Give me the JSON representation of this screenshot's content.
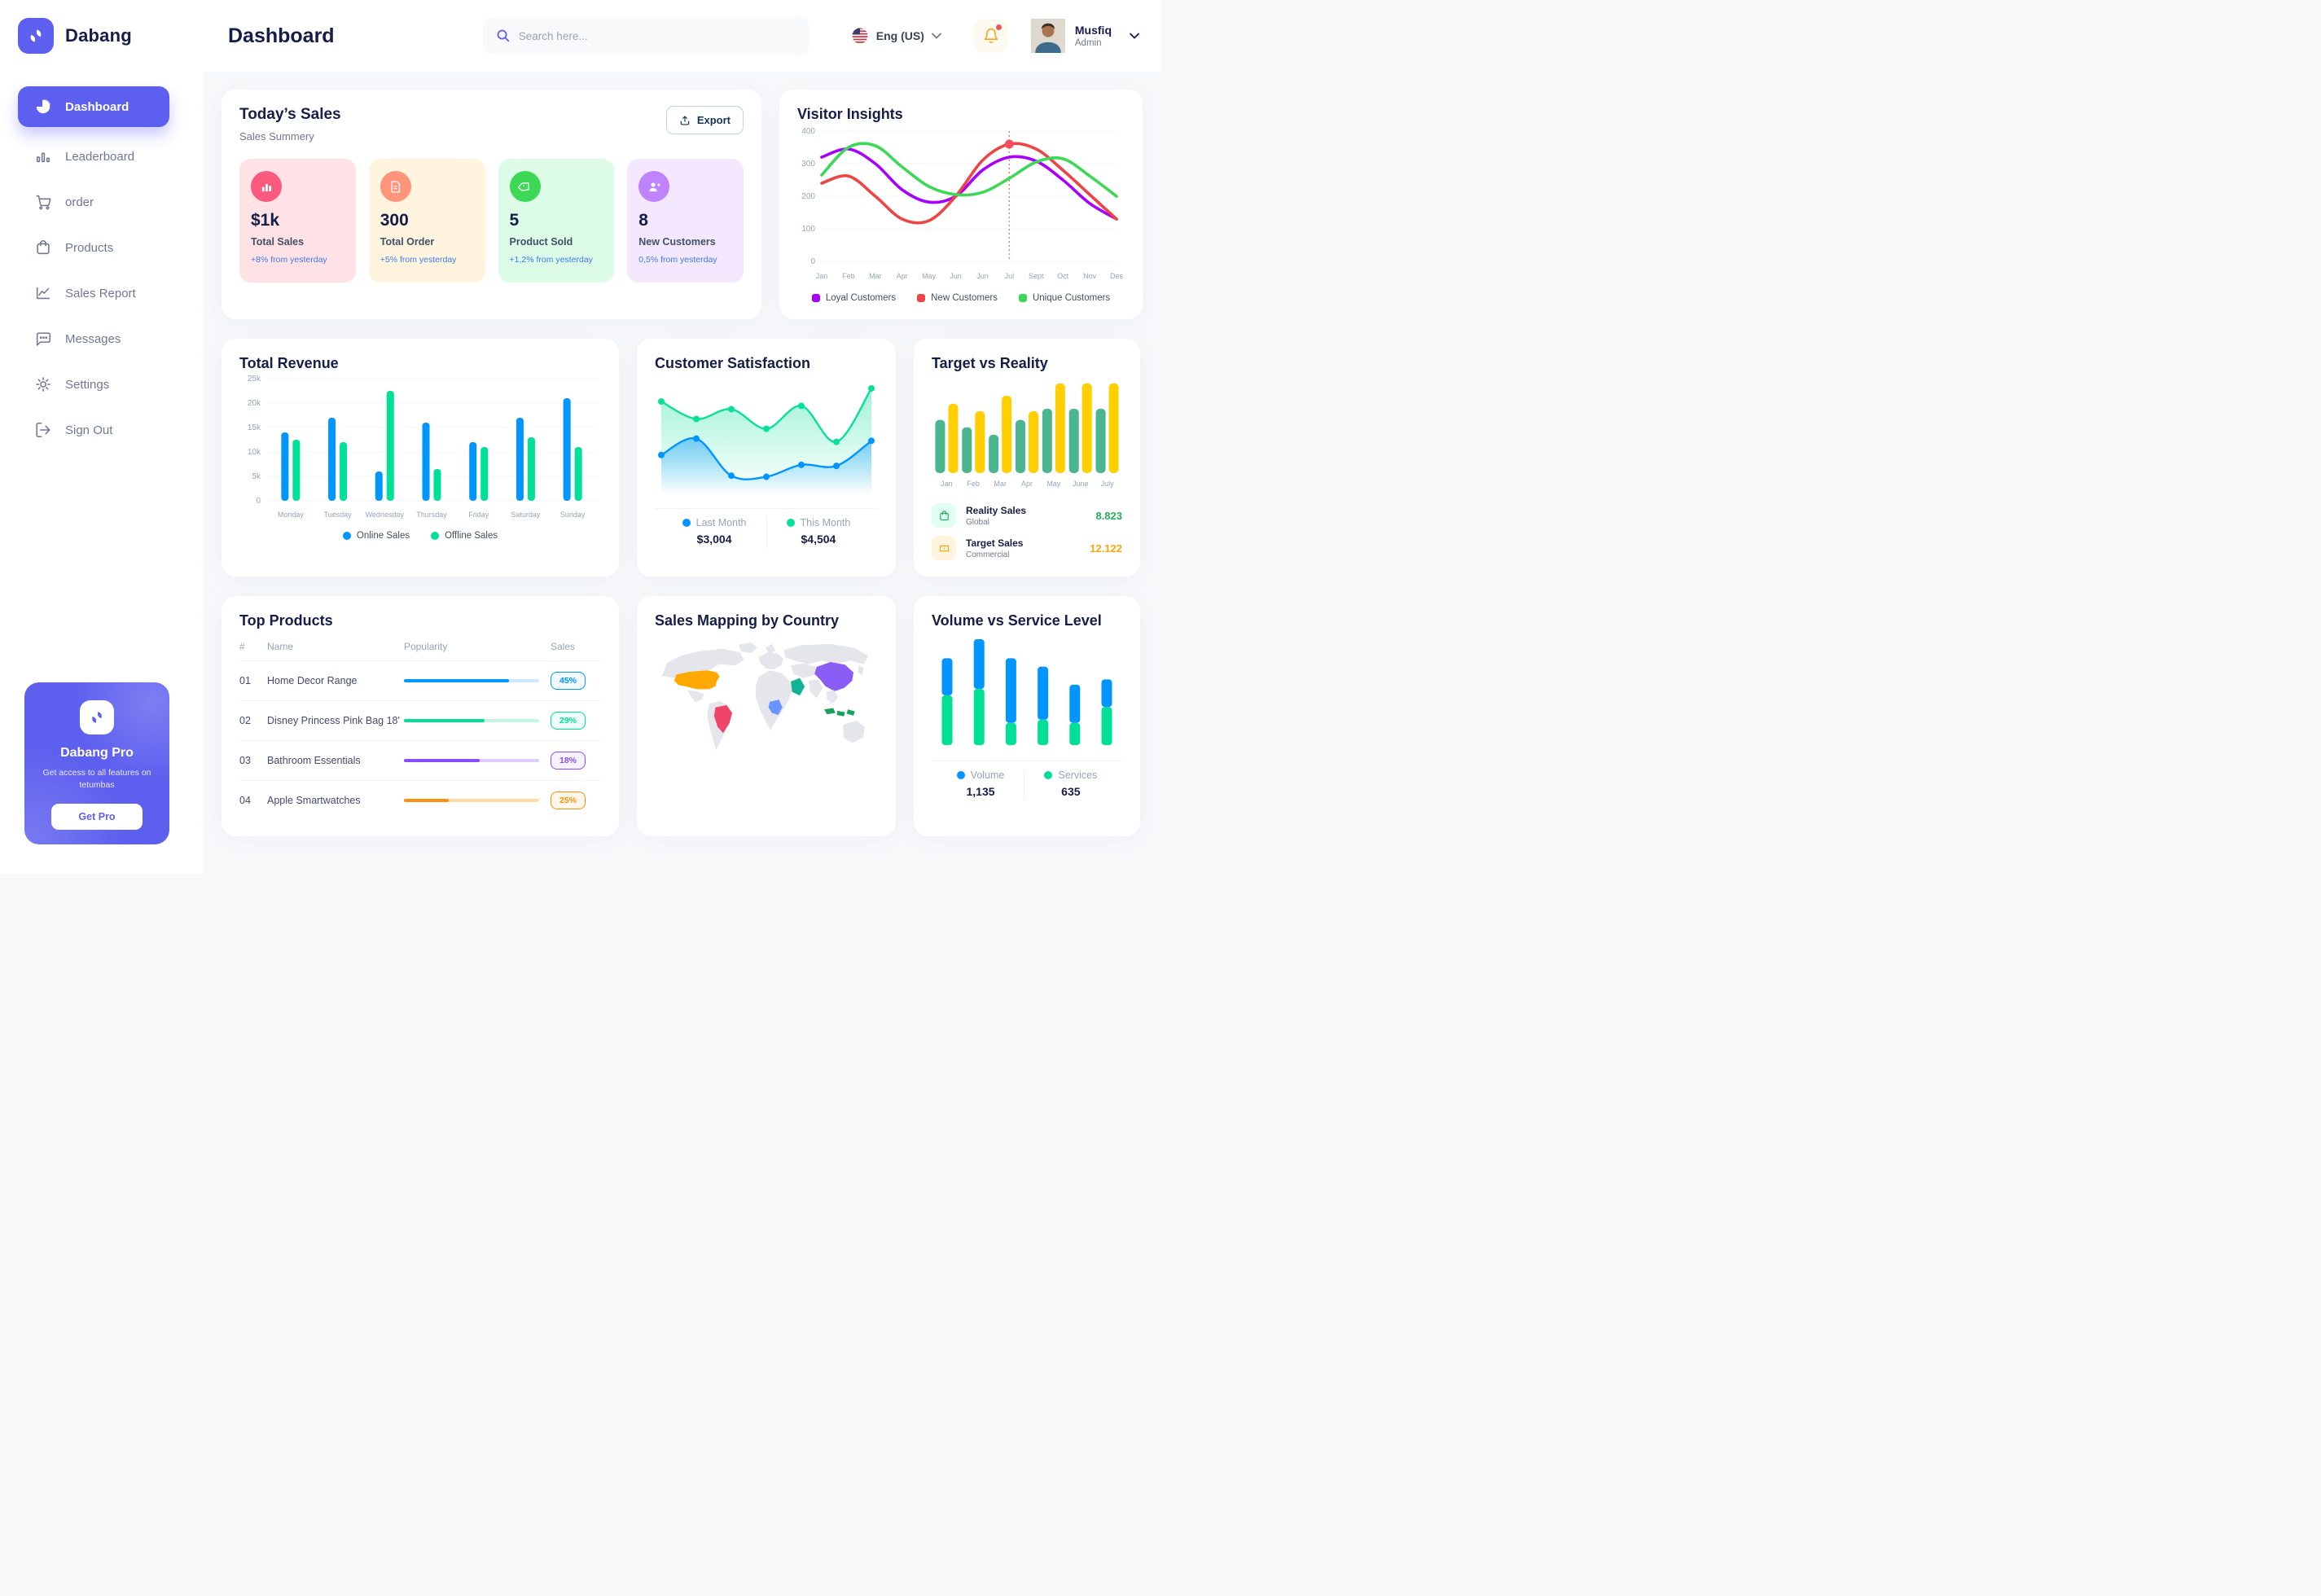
{
  "theme": {
    "accent": "#5D5FEF",
    "heading": "#151D48",
    "muted": "#737791",
    "axis": "#96A5B8",
    "page_bg": "#F7F8FA"
  },
  "brand": {
    "name": "Dabang"
  },
  "header": {
    "title": "Dashboard",
    "search_placeholder": "Search here...",
    "language": "Eng (US)",
    "user": {
      "name": "Musfiq",
      "role": "Admin"
    }
  },
  "sidebar": {
    "items": [
      {
        "label": "Dashboard",
        "active": true
      },
      {
        "label": "Leaderboard",
        "active": false
      },
      {
        "label": "order",
        "active": false
      },
      {
        "label": "Products",
        "active": false
      },
      {
        "label": "Sales Report",
        "active": false
      },
      {
        "label": "Messages",
        "active": false
      },
      {
        "label": "Settings",
        "active": false
      },
      {
        "label": "Sign Out",
        "active": false
      }
    ],
    "pro": {
      "title": "Dabang Pro",
      "text": "Get access to all features on tetumbas",
      "button": "Get Pro"
    }
  },
  "today_sales": {
    "title": "Today’s Sales",
    "subtitle": "Sales Summery",
    "export_label": "Export",
    "cards": [
      {
        "value": "$1k",
        "label": "Total Sales",
        "delta": "+8% from yesterday",
        "bg": "#FFE2E5",
        "icon_bg": "#FA5A7D",
        "icon": "bar-chart"
      },
      {
        "value": "300",
        "label": "Total Order",
        "delta": "+5% from yesterday",
        "bg": "#FFF4DE",
        "icon_bg": "#FF947A",
        "icon": "receipt"
      },
      {
        "value": "5",
        "label": "Product Sold",
        "delta": "+1,2% from yesterday",
        "bg": "#DCFCE7",
        "icon_bg": "#3CD856",
        "icon": "tag"
      },
      {
        "value": "8",
        "label": "New Customers",
        "delta": "0,5% from yesterday",
        "bg": "#F3E8FF",
        "icon_bg": "#BF83FF",
        "icon": "user-plus"
      }
    ]
  },
  "chart_data": [
    {
      "id": "visitor-insights",
      "type": "line",
      "title": "Visitor Insights",
      "x": [
        "Jan",
        "Feb",
        "Mar",
        "Apr",
        "May",
        "Jun",
        "Jun",
        "Jul",
        "Sept",
        "Oct",
        "Nov",
        "Des"
      ],
      "ylim": [
        0,
        400
      ],
      "yticks": [
        0,
        100,
        200,
        300,
        400
      ],
      "grid": true,
      "legend_position": "bottom",
      "series": [
        {
          "name": "Loyal Customers",
          "color": "#A700FF",
          "values": [
            320,
            345,
            300,
            220,
            182,
            200,
            280,
            320,
            308,
            250,
            178,
            130
          ]
        },
        {
          "name": "New Customers",
          "color": "#EF4444",
          "values": [
            240,
            262,
            200,
            130,
            125,
            200,
            310,
            360,
            345,
            280,
            205,
            130
          ]
        },
        {
          "name": "Unique Customers",
          "color": "#3CD856",
          "values": [
            265,
            350,
            355,
            290,
            230,
            205,
            212,
            255,
            305,
            315,
            262,
            200
          ]
        }
      ],
      "marker": {
        "series": "New Customers",
        "x_label": "Jul",
        "x_index": 7,
        "value": 360,
        "color": "#F64E60"
      }
    },
    {
      "id": "total-revenue",
      "type": "bar",
      "title": "Total Revenue",
      "categories": [
        "Monday",
        "Tuesday",
        "Wednesday",
        "Thursday",
        "Friday",
        "Saturday",
        "Sunday"
      ],
      "ylim": [
        0,
        25
      ],
      "yticks_labels": [
        "0",
        "5k",
        "10k",
        "15k",
        "20k",
        "25k"
      ],
      "grid": true,
      "legend_position": "bottom",
      "series": [
        {
          "name": "Online Sales",
          "color": "#0095FF",
          "values": [
            14,
            17,
            6,
            16,
            12,
            17,
            21
          ]
        },
        {
          "name": "Offline Sales",
          "color": "#00E096",
          "values": [
            12.5,
            12,
            22.5,
            6.5,
            11,
            13,
            11
          ]
        }
      ]
    },
    {
      "id": "customer-satisfaction",
      "type": "area",
      "title": "Customer Satisfaction",
      "ylim": [
        0,
        100
      ],
      "grid": false,
      "legend_position": "bottom",
      "series": [
        {
          "name": "Last Month",
          "color": "#0095FF",
          "total": "$3,004",
          "values": [
            36,
            51,
            17,
            16,
            27,
            26,
            49
          ]
        },
        {
          "name": "This Month",
          "color": "#07E098",
          "total": "$4,504",
          "values": [
            85,
            69,
            78,
            60,
            81,
            48,
            97
          ]
        }
      ]
    },
    {
      "id": "target-reality",
      "type": "bar",
      "title": "Target vs Reality",
      "categories": [
        "Jan",
        "Feb",
        "Mar",
        "Apr",
        "May",
        "June",
        "July"
      ],
      "ylim": [
        0,
        15
      ],
      "grid": false,
      "series": [
        {
          "name": "Reality Sales",
          "subtitle": "Global",
          "color": "#4AB58E",
          "value_label": "8.823",
          "value_color": "#27AE60",
          "tile_bg": "#E2FFF3",
          "values": [
            8.6,
            7.4,
            6.2,
            8.6,
            10.4,
            10.4,
            10.4
          ]
        },
        {
          "name": "Target Sales",
          "subtitle": "Commercial",
          "color": "#FFCF00",
          "value_label": "12.122",
          "value_color": "#FFA412",
          "tile_bg": "#FFF4DE",
          "values": [
            11.2,
            10,
            12.5,
            10,
            14.5,
            14.5,
            14.5
          ]
        }
      ]
    },
    {
      "id": "volume-service",
      "type": "stacked-bar",
      "title": "Volume vs Service Level",
      "ylim": [
        0,
        100
      ],
      "legend_position": "bottom",
      "series": [
        {
          "name": "Volume",
          "color": "#0095FF",
          "total": "1,135",
          "values": [
            35,
            47,
            61,
            50,
            36,
            26
          ]
        },
        {
          "name": "Services",
          "color": "#00E096",
          "total": "635",
          "values": [
            47,
            53,
            21,
            24,
            21,
            36
          ]
        }
      ]
    }
  ],
  "top_products": {
    "title": "Top Products",
    "headers": [
      "#",
      "Name",
      "Popularity",
      "Sales"
    ],
    "rows": [
      {
        "num": "01",
        "name": "Home Decor Range",
        "fill": 78,
        "color": "#0095FF",
        "track": "#CDE7FF",
        "sales": "45%",
        "badge_bg": "#F0F9FF"
      },
      {
        "num": "02",
        "name": "Disney Princess Pink Bag 18'",
        "fill": 60,
        "color": "#00E096",
        "track": "#C5F6E0",
        "sales": "29%",
        "badge_bg": "#EFFEF8"
      },
      {
        "num": "03",
        "name": "Bathroom Essentials",
        "fill": 56,
        "color": "#884DFF",
        "track": "#DCCCFF",
        "sales": "18%",
        "badge_bg": "#F7F2FF"
      },
      {
        "num": "04",
        "name": "Apple Smartwatches",
        "fill": 33,
        "color": "#FF8F0D",
        "track": "#FFD9A6",
        "sales": "25%",
        "badge_bg": "#FFF7EC"
      }
    ]
  },
  "sales_map": {
    "title": "Sales Mapping by Country",
    "countries": [
      {
        "id": "usa",
        "name": "United States",
        "color": "#FFA800"
      },
      {
        "id": "brazil",
        "name": "Brazil",
        "color": "#F0456A"
      },
      {
        "id": "china",
        "name": "China",
        "color": "#8B5CF6"
      },
      {
        "id": "saudi",
        "name": "Saudi Arabia",
        "color": "#10B394"
      },
      {
        "id": "congo",
        "name": "DR Congo",
        "color": "#6993FF"
      },
      {
        "id": "indonesia",
        "name": "Indonesia",
        "color": "#17A35B"
      }
    ]
  }
}
